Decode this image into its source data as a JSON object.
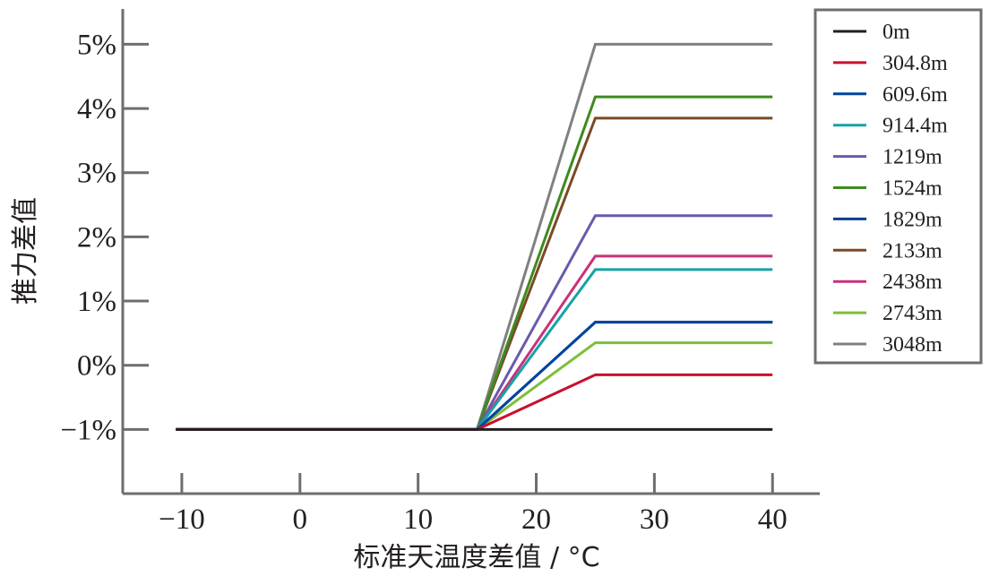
{
  "chart_data": {
    "type": "line",
    "xlabel": "标准天温度差值 / °C",
    "ylabel": "推力差值",
    "xlim": [
      -15,
      44
    ],
    "ylim": [
      -2,
      5.55
    ],
    "xticks": [
      -10,
      0,
      10,
      20,
      30,
      40
    ],
    "xtick_labels": [
      "−10",
      "0",
      "10",
      "20",
      "30",
      "40"
    ],
    "yticks": [
      -1,
      0,
      1,
      2,
      3,
      4,
      5
    ],
    "ytick_labels": [
      "−1%",
      "0%",
      "1%",
      "2%",
      "3%",
      "4%",
      "5%"
    ],
    "grid": false,
    "legend": "top-right",
    "series": [
      {
        "name": "0m",
        "color": "#231f20",
        "x": [
          -10.5,
          15,
          40
        ],
        "y": [
          -1.0,
          -1.0,
          -1.0
        ]
      },
      {
        "name": "304.8m",
        "color": "#c8102e",
        "x": [
          -10.5,
          15,
          25,
          40
        ],
        "y": [
          -1.0,
          -1.0,
          -0.15,
          -0.15
        ]
      },
      {
        "name": "609.6m",
        "color": "#00449e",
        "x": [
          -10.5,
          15,
          25,
          40
        ],
        "y": [
          -1.0,
          -1.0,
          0.67,
          0.67
        ]
      },
      {
        "name": "914.4m",
        "color": "#17a2a8",
        "x": [
          -10.5,
          15,
          25,
          40
        ],
        "y": [
          -1.0,
          -1.0,
          1.49,
          1.49
        ]
      },
      {
        "name": "1219m",
        "color": "#6a5aad",
        "x": [
          -10.5,
          15,
          25,
          40
        ],
        "y": [
          -1.0,
          -1.0,
          2.33,
          2.33
        ]
      },
      {
        "name": "1524m",
        "color": "#3f8a1f",
        "x": [
          -10.5,
          15,
          25,
          40
        ],
        "y": [
          -1.0,
          -1.0,
          4.18,
          4.18
        ]
      },
      {
        "name": "1829m",
        "color": "#0a3d91",
        "x": [
          -10.5,
          15,
          25,
          40
        ],
        "y": [
          -1.0,
          -1.0,
          0.67,
          0.67
        ]
      },
      {
        "name": "2133m",
        "color": "#7b4a25",
        "x": [
          -10.5,
          15,
          25,
          40
        ],
        "y": [
          -1.0,
          -1.0,
          3.85,
          3.85
        ]
      },
      {
        "name": "2438m",
        "color": "#c8327a",
        "x": [
          -10.5,
          15,
          25,
          40
        ],
        "y": [
          -1.0,
          -1.0,
          1.7,
          1.7
        ]
      },
      {
        "name": "2743m",
        "color": "#7cbf3a",
        "x": [
          -10.5,
          15,
          25,
          40
        ],
        "y": [
          -1.0,
          -1.0,
          0.35,
          0.35
        ]
      },
      {
        "name": "3048m",
        "color": "#808080",
        "x": [
          -10.5,
          15,
          25,
          40
        ],
        "y": [
          -1.0,
          -1.0,
          5.0,
          5.0
        ]
      }
    ]
  }
}
